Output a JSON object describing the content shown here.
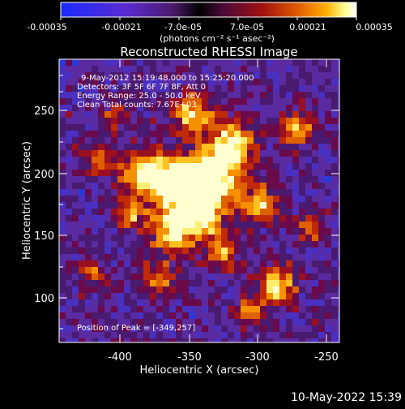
{
  "colorbar": {
    "tick_labels": [
      "-0.00035",
      "-0.00021",
      "-7.0e-05",
      "7.0e-05",
      "0.00021",
      "0.00035"
    ],
    "units_label": "(photons cm⁻² s⁻¹ asec⁻²)",
    "stops": [
      "#1a2bff",
      "#5a2bd0",
      "#4b1a6a",
      "#000000",
      "#4a0a3a",
      "#a01010",
      "#e05a00",
      "#ffb000",
      "#ffff90",
      "#ffffff"
    ]
  },
  "title": "Reconstructed RHESSI Image",
  "annotations": {
    "time_range": "9-May-2012 15:19:48.000 to 15:25:20.000",
    "detectors": "Detectors: 3F 5F 6F 7F 8F, Att 0",
    "energy": "Energy Range: 25.0 - 50.0 keV",
    "clean": "Clean     Total counts: 7.67E+03",
    "peak": "Position of Peak = [-349,257]"
  },
  "axes": {
    "xlabel": "Heliocentric X (arcsec)",
    "ylabel": "Heliocentric Y (arcsec)",
    "xticks": [
      "-400",
      "-350",
      "-300",
      "-250"
    ],
    "yticks": [
      "100",
      "150",
      "200",
      "250"
    ]
  },
  "footer_timestamp": "10-May-2022 15:39"
}
